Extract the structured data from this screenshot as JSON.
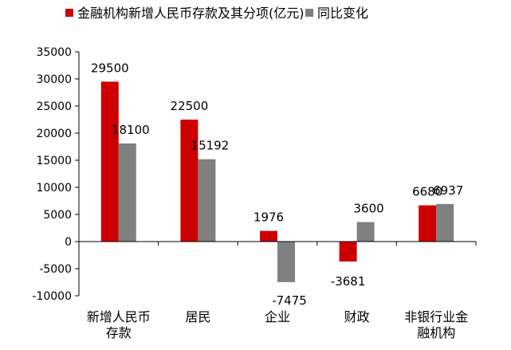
{
  "chart_data": {
    "type": "bar",
    "title": "",
    "xlabel": "",
    "ylabel": "",
    "categories": [
      [
        "新增人民币",
        "存款"
      ],
      [
        "居民"
      ],
      [
        "企业"
      ],
      [
        "财政"
      ],
      [
        "非银行业金",
        "融机构"
      ]
    ],
    "series": [
      {
        "name": "金融机构新增人民币存款及其分项(亿元)",
        "color": "#cc0000",
        "values": [
          29500,
          22500,
          1976,
          -3681,
          6680
        ],
        "labels": [
          "29500",
          "22500",
          "1976",
          "-3681",
          "6680"
        ]
      },
      {
        "name": "同比变化",
        "color": "#808080",
        "values": [
          18100,
          15192,
          -7475,
          3600,
          6937
        ],
        "labels": [
          "18100",
          "15192",
          "-7475",
          "3600",
          "6937"
        ]
      }
    ],
    "ylim": [
      -10000,
      35000
    ],
    "yticks": [
      -10000,
      -5000,
      0,
      5000,
      10000,
      15000,
      20000,
      25000,
      30000,
      35000
    ],
    "ytick_labels": [
      "-10000",
      "-5000",
      "0",
      "5000",
      "10000",
      "15000",
      "20000",
      "25000",
      "30000",
      "35000"
    ],
    "grid": false,
    "legend_position": "top"
  }
}
